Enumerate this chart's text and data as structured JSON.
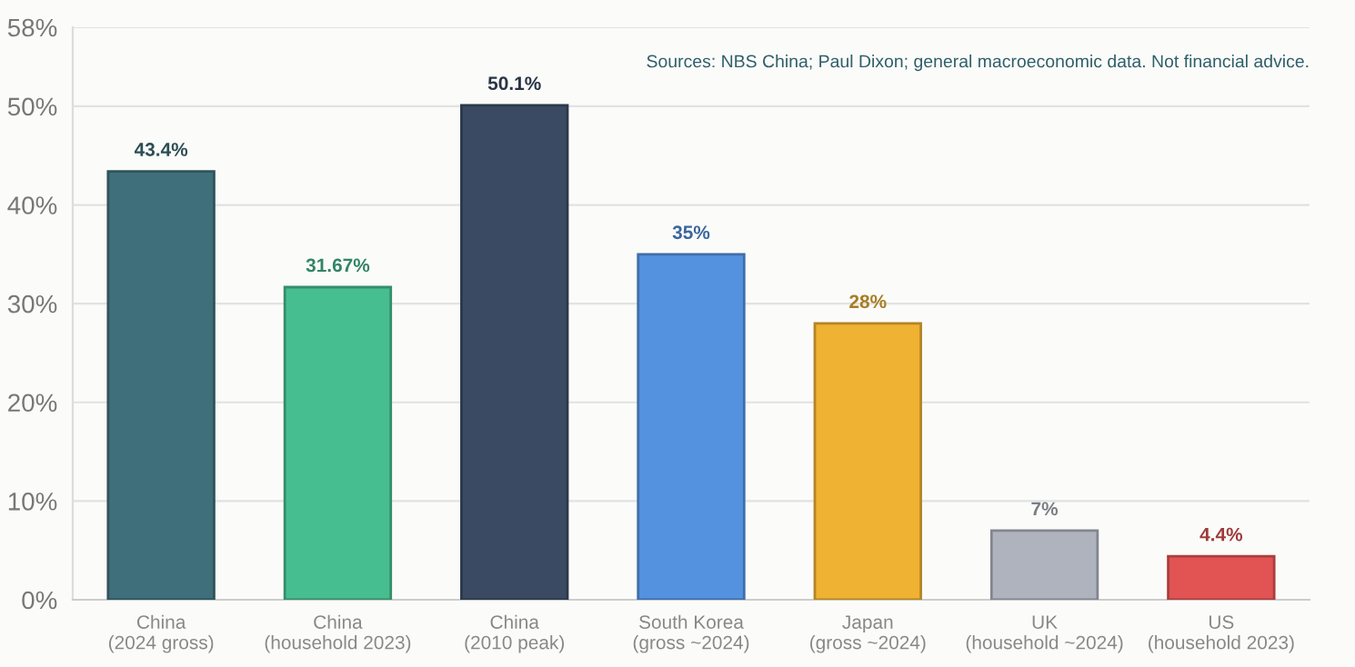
{
  "chart_data": {
    "type": "bar",
    "categories": [
      "China\n(2024 gross)",
      "China\n(household 2023)",
      "China\n(2010 peak)",
      "South Korea\n(gross ~2024)",
      "Japan\n(gross ~2024)",
      "UK\n(household ~2024)",
      "US\n(household 2023)"
    ],
    "values": [
      43.4,
      31.67,
      50.1,
      35,
      28,
      7,
      4.4
    ],
    "colors": [
      "#3f6f7a",
      "#47be8f",
      "#3b4a63",
      "#5492e0",
      "#f0b232",
      "#aeb3bd",
      "#e25353"
    ],
    "value_labels": [
      "43.4%",
      "31.67%",
      "50.1%",
      "35%",
      "28%",
      "7%",
      "4.4%"
    ],
    "ylim": [
      0,
      58
    ],
    "yticks": [
      {
        "value": 0,
        "label": "0%"
      },
      {
        "value": 10,
        "label": "10%"
      },
      {
        "value": 20,
        "label": "20%"
      },
      {
        "value": 30,
        "label": "30%"
      },
      {
        "value": 40,
        "label": "40%"
      },
      {
        "value": 50,
        "label": "50%"
      },
      {
        "value": 58,
        "label": "58%"
      }
    ],
    "grid": "y",
    "annotations": [
      "Sources: NBS China; Paul Dixon; general macroeconomic data. Not financial advice."
    ]
  }
}
